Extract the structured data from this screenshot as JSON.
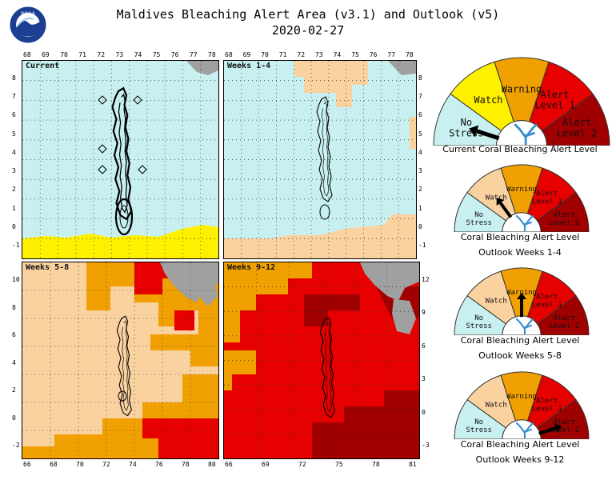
{
  "title": "Maldives Bleaching Alert Area (v3.1) and Outlook (v5)",
  "date": "2020-02-27",
  "logo": "NOAA",
  "colors": {
    "no_stress": "#c8f0f0",
    "watch": "#fff000",
    "warning": "#f0a000",
    "alert1": "#e60000",
    "alert2": "#a00000",
    "light_orange": "#fad2a0",
    "land": "#a0a0a0"
  },
  "maps": [
    {
      "label": "Current",
      "x_ticks": [
        "68",
        "69",
        "70",
        "71",
        "72",
        "73",
        "74",
        "75",
        "76",
        "77",
        "78"
      ],
      "y_ticks": [
        "8",
        "7",
        "6",
        "5",
        "4",
        "3",
        "2",
        "1",
        "0",
        "-1"
      ]
    },
    {
      "label": "Weeks 1-4",
      "x_ticks": [
        "68",
        "69",
        "70",
        "71",
        "72",
        "73",
        "74",
        "75",
        "76",
        "77",
        "78"
      ],
      "y_ticks": [
        "8",
        "7",
        "6",
        "5",
        "4",
        "3",
        "2",
        "1",
        "0",
        "-1"
      ]
    },
    {
      "label": "Weeks 5-8",
      "x_ticks": [
        "66",
        "68",
        "70",
        "72",
        "74",
        "76",
        "78",
        "80"
      ],
      "y_ticks": [
        "10",
        "8",
        "6",
        "4",
        "2",
        "0",
        "-2"
      ]
    },
    {
      "label": "Weeks 9-12",
      "x_ticks": [
        "66",
        "69",
        "72",
        "75",
        "78",
        "81"
      ],
      "y_ticks": [
        "12",
        "9",
        "6",
        "3",
        "0",
        "-3"
      ]
    }
  ],
  "gauge_labels": {
    "no_stress": [
      "No",
      "Stress"
    ],
    "watch": "Watch",
    "warning": "Warning",
    "alert1": [
      "Alert",
      "Level 1"
    ],
    "alert2": [
      "Alert",
      "Level 2"
    ]
  },
  "gauges": [
    {
      "caption1": "Current Coral Bleaching Alert Level",
      "caption2": "",
      "level": "No Stress",
      "needle_level_index": 0
    },
    {
      "caption1": "Coral Bleaching Alert Level",
      "caption2": "Outlook Weeks 1-4",
      "level": "Watch",
      "needle_level_index": 1
    },
    {
      "caption1": "Coral Bleaching Alert Level",
      "caption2": "Outlook Weeks 5-8",
      "level": "Warning",
      "needle_level_index": 2
    },
    {
      "caption1": "Coral Bleaching Alert Level",
      "caption2": "Outlook Weeks 9-12",
      "level": "Alert Level 2",
      "needle_level_index": 4
    }
  ]
}
